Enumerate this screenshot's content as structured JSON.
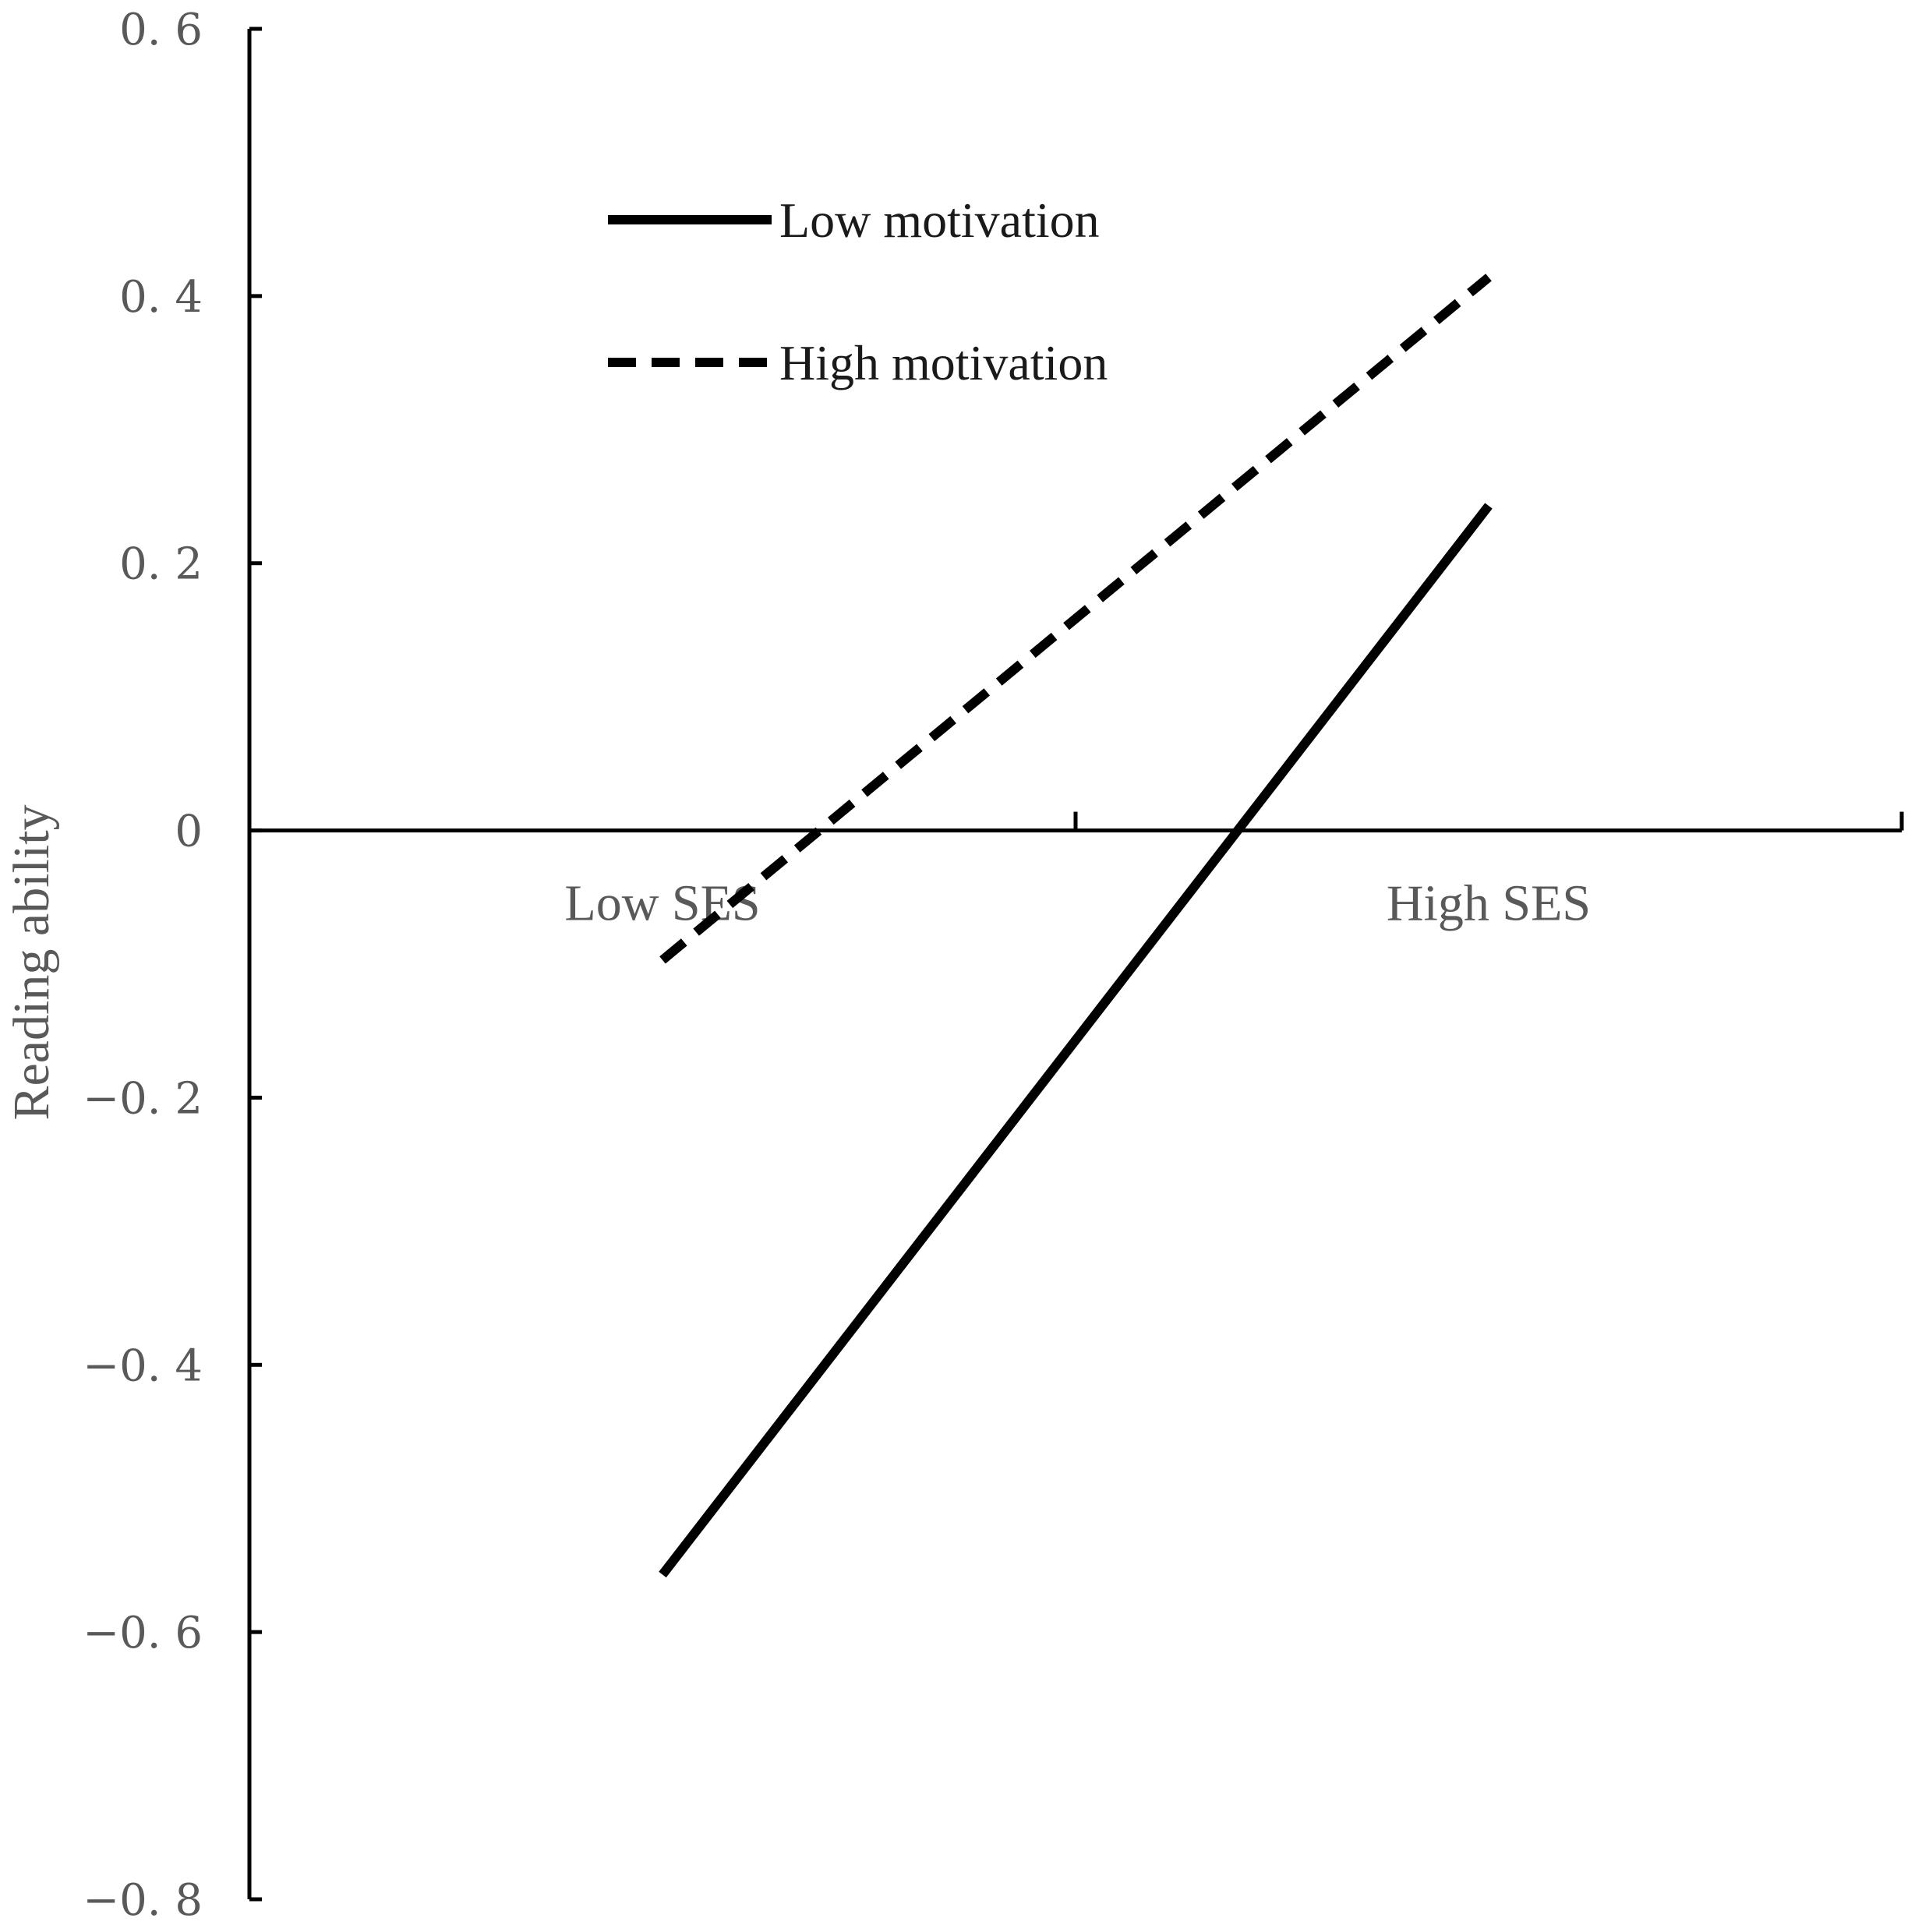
{
  "chart_data": {
    "type": "line",
    "title": "",
    "xlabel": "",
    "ylabel": "Reading ability",
    "categories": [
      "Low SES",
      "High SES"
    ],
    "ylim": [
      -0.8,
      0.6
    ],
    "yticks": [
      0.6,
      0.4,
      0.2,
      0,
      -0.2,
      -0.4,
      -0.6,
      -0.8
    ],
    "ytick_labels": [
      "0. 6",
      "0. 4",
      "0. 2",
      "0",
      "−0. 2",
      "−0. 4",
      "−0. 6",
      "−0. 8"
    ],
    "grid": false,
    "legend_position": "top-left",
    "series": [
      {
        "name": "Low motivation",
        "values": [
          -0.557,
          0.243
        ],
        "style": "solid",
        "color": "#000000"
      },
      {
        "name": "High motivation",
        "values": [
          -0.097,
          0.414
        ],
        "style": "dashed",
        "color": "#000000"
      }
    ]
  }
}
